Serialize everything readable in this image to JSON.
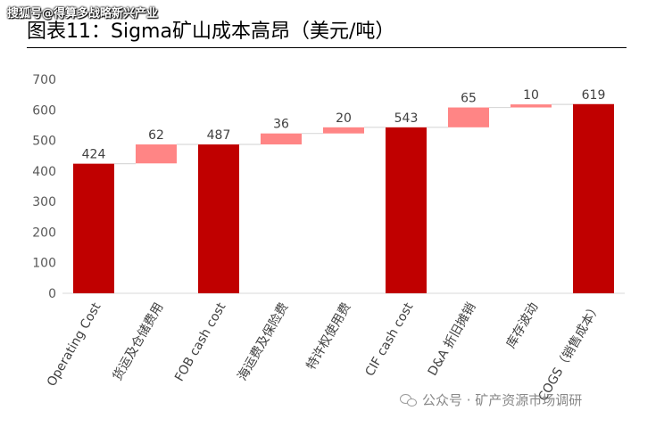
{
  "header": {
    "source_tag": "搜狐号@得算多战略新兴产业",
    "title": "图表11：Sigma矿山成本高昂（美元/吨）"
  },
  "watermark": {
    "icon": "wechat-icon",
    "text": "公众号 · 矿产资源市场调研"
  },
  "colors": {
    "total_bar": "#c00000",
    "increment_bar": "#ff8585",
    "connector": "#d9d9d9",
    "axis_text": "#595959",
    "label_text": "#404040"
  },
  "chart_data": {
    "type": "waterfall",
    "title": "图表11：Sigma矿山成本高昂（美元/吨）",
    "xlabel": "",
    "ylabel": "",
    "ylim": [
      0,
      700
    ],
    "yticks": [
      0,
      100,
      200,
      300,
      400,
      500,
      600,
      700
    ],
    "grid": false,
    "legend": "none",
    "categories": [
      "Operating Cost",
      "货运及仓储费用",
      "FOB cash cost",
      "海运费及保险费",
      "特许权使用费",
      "CIF cash cost",
      "D&A 折旧摊销",
      "库存波动",
      "COGS（销售成本）"
    ],
    "values": [
      424,
      62,
      487,
      36,
      20,
      543,
      65,
      10,
      619
    ],
    "kind": [
      "total",
      "increment",
      "total",
      "increment",
      "increment",
      "total",
      "increment",
      "increment",
      "total"
    ],
    "bases": [
      0,
      425,
      0,
      487,
      523,
      0,
      543,
      608,
      0
    ]
  }
}
